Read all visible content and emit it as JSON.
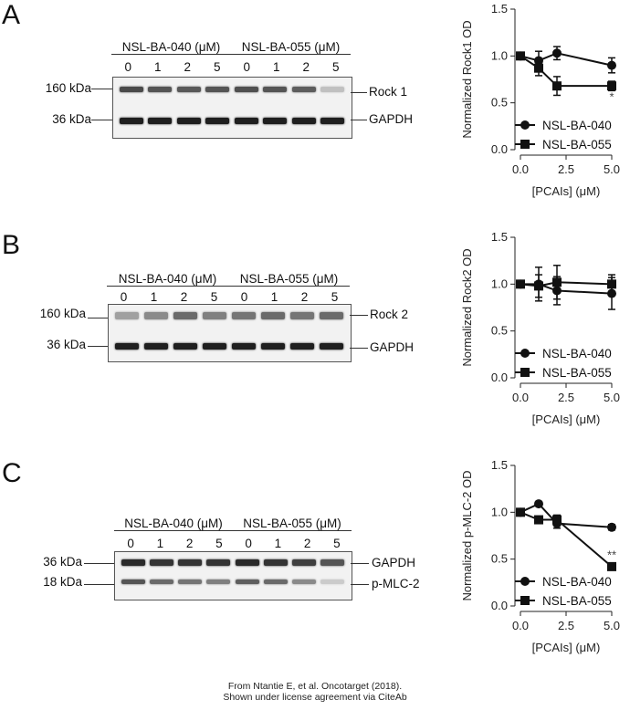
{
  "panels": [
    {
      "letter": "A",
      "blot": {
        "group1": "NSL-BA-040 (μM)",
        "group2": "NSL-BA-055 (μM)",
        "lanes": [
          "0",
          "1",
          "2",
          "5",
          "0",
          "1",
          "2",
          "5"
        ],
        "mw_top": "160 kDa",
        "mw_bottom": "36 kDa",
        "prot_top": "Rock 1",
        "prot_bottom": "GAPDH",
        "top_band_intensity": [
          0.75,
          0.7,
          0.68,
          0.7,
          0.72,
          0.7,
          0.66,
          0.2
        ],
        "bottom_band_intensity": [
          0.95,
          0.95,
          0.95,
          0.95,
          0.95,
          0.95,
          0.95,
          0.95
        ]
      }
    },
    {
      "letter": "B",
      "blot": {
        "group1": "NSL-BA-040 (μM)",
        "group2": "NSL-BA-055 (μM)",
        "lanes": [
          "0",
          "1",
          "2",
          "5",
          "0",
          "1",
          "2",
          "5"
        ],
        "mw_top": "160 kDa",
        "mw_bottom": "36 kDa",
        "prot_top": "Rock 2",
        "prot_bottom": "GAPDH",
        "top_band_intensity": [
          0.35,
          0.45,
          0.6,
          0.5,
          0.55,
          0.6,
          0.55,
          0.6
        ],
        "bottom_band_intensity": [
          0.95,
          0.95,
          0.95,
          0.95,
          0.95,
          0.95,
          0.95,
          0.95
        ]
      }
    },
    {
      "letter": "C",
      "blot": {
        "group1": "NSL-BA-040 (μM)",
        "group2": "NSL-BA-055 (μM)",
        "lanes": [
          "0",
          "1",
          "2",
          "5",
          "0",
          "1",
          "2",
          "5"
        ],
        "mw_top": "36 kDa",
        "mw_bottom": "18 kDa",
        "prot_top": "GAPDH",
        "prot_bottom": "p-MLC-2",
        "top_band_intensity": [
          0.9,
          0.85,
          0.85,
          0.85,
          0.9,
          0.85,
          0.8,
          0.7
        ],
        "bottom_band_intensity": [
          0.7,
          0.6,
          0.55,
          0.5,
          0.65,
          0.6,
          0.45,
          0.15
        ]
      }
    }
  ],
  "chart_data": [
    {
      "type": "line",
      "ylabel": "Normalized Rock1 OD",
      "xlabel": "[PCAIs] (μM)",
      "xlim": [
        0,
        5
      ],
      "ylim": [
        0,
        1.5
      ],
      "xticks": [
        "0.0",
        "2.5",
        "5.0"
      ],
      "yticks": [
        "0.0",
        "0.5",
        "1.0",
        "1.5"
      ],
      "series": [
        {
          "name": "NSL-BA-040",
          "marker": "circle",
          "x": [
            0,
            1,
            2,
            5
          ],
          "y": [
            1.0,
            0.95,
            1.03,
            0.9
          ],
          "err": [
            0.02,
            0.1,
            0.07,
            0.08
          ]
        },
        {
          "name": "NSL-BA-055",
          "marker": "square",
          "x": [
            0,
            1,
            2,
            5
          ],
          "y": [
            1.0,
            0.87,
            0.68,
            0.68
          ],
          "err": [
            0.02,
            0.08,
            0.1,
            0.05
          ]
        }
      ],
      "annotations": [
        {
          "x": 5,
          "y": 0.52,
          "text": "*"
        }
      ]
    },
    {
      "type": "line",
      "ylabel": "Normalized Rock2 OD",
      "xlabel": "[PCAIs] (μM)",
      "xlim": [
        0,
        5
      ],
      "ylim": [
        0,
        1.5
      ],
      "xticks": [
        "0.0",
        "2.5",
        "5.0"
      ],
      "yticks": [
        "0.0",
        "0.5",
        "1.0",
        "1.5"
      ],
      "series": [
        {
          "name": "NSL-BA-040",
          "marker": "circle",
          "x": [
            0,
            1,
            2,
            5
          ],
          "y": [
            1.0,
            1.0,
            0.93,
            0.9
          ],
          "err": [
            0.02,
            0.18,
            0.15,
            0.17
          ]
        },
        {
          "name": "NSL-BA-055",
          "marker": "square",
          "x": [
            0,
            1,
            2,
            5
          ],
          "y": [
            1.0,
            0.98,
            1.02,
            1.0
          ],
          "err": [
            0.02,
            0.12,
            0.18,
            0.1
          ]
        }
      ],
      "annotations": []
    },
    {
      "type": "line",
      "ylabel": "Normalized p-MLC-2 OD",
      "xlabel": "[PCAIs] (μM)",
      "xlim": [
        0,
        5
      ],
      "ylim": [
        0,
        1.5
      ],
      "xticks": [
        "0.0",
        "2.5",
        "5.0"
      ],
      "yticks": [
        "0.0",
        "0.5",
        "1.0",
        "1.5"
      ],
      "series": [
        {
          "name": "NSL-BA-040",
          "marker": "circle",
          "x": [
            0,
            1,
            2,
            5
          ],
          "y": [
            1.0,
            1.09,
            0.88,
            0.84
          ],
          "err": [
            0.02,
            0.02,
            0.05,
            0.03
          ]
        },
        {
          "name": "NSL-BA-055",
          "marker": "square",
          "x": [
            0,
            1,
            2,
            5
          ],
          "y": [
            1.0,
            0.92,
            0.92,
            0.42
          ],
          "err": [
            0.02,
            0.03,
            0.05,
            0.03
          ]
        }
      ],
      "annotations": [
        {
          "x": 5,
          "y": 0.5,
          "text": "**"
        }
      ]
    }
  ],
  "footer": {
    "line1": "From Ntantie E, et al. Oncotarget (2018).",
    "line2": "Shown under license agreement via CiteAb"
  }
}
